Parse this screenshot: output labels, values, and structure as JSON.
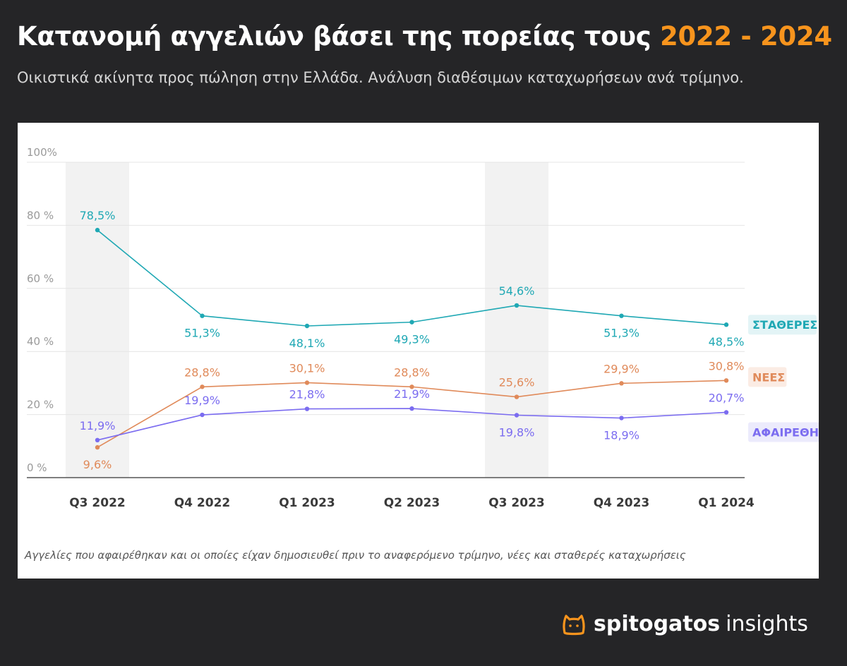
{
  "header": {
    "title_main": "Κατανομή αγγελιών βάσει της πορείας τους",
    "title_accent": "2022 - 2024",
    "subtitle": "Οικιστικά ακίνητα προς πώληση στην Ελλάδα. Ανάλυση διαθέσιμων καταχωρήσεων ανά τρίμηνο."
  },
  "footnote": "Αγγελίες που αφαιρέθηκαν και οι οποίες είχαν δημοσιευθεί πριν το αναφερόμενο τρίμηνο, νέες και σταθερές καταχωρήσεις",
  "brand": {
    "name": "spitogatos",
    "suffix": "insights",
    "logo_icon": "cat-outline-icon",
    "logo_color": "#f7941d"
  },
  "colors": {
    "background": "#252527",
    "accent": "#f7941d",
    "stable": "#1fa8b4",
    "new": "#e08a5a",
    "removed": "#7b6cf0",
    "highlight_band": "#f2f2f2"
  },
  "chart_data": {
    "type": "line",
    "categories": [
      "Q3 2022",
      "Q4 2022",
      "Q1 2023",
      "Q2 2023",
      "Q3 2023",
      "Q4 2023",
      "Q1 2024"
    ],
    "y_ticks": [
      "100%",
      "80 %",
      "60 %",
      "40 %",
      "20 %",
      "0 %"
    ],
    "y_tick_values": [
      100,
      80,
      60,
      40,
      20,
      0
    ],
    "ylim": [
      0,
      100
    ],
    "grid": true,
    "highlighted_categories": [
      "Q3 2022",
      "Q3 2023"
    ],
    "series": [
      {
        "key": "stable",
        "name": "ΣΤΑΘΕΡΕΣ",
        "values": [
          78.5,
          51.3,
          48.1,
          49.3,
          54.6,
          51.3,
          48.5
        ],
        "labels": [
          "78,5%",
          "51,3%",
          "48,1%",
          "49,3%",
          "54,6%",
          "51,3%",
          "48,5%"
        ]
      },
      {
        "key": "new",
        "name": "ΝΕΕΣ",
        "values": [
          9.6,
          28.8,
          30.1,
          28.8,
          25.6,
          29.9,
          30.8
        ],
        "labels": [
          "9,6%",
          "28,8%",
          "30,1%",
          "28,8%",
          "25,6%",
          "29,9%",
          "30,8%"
        ]
      },
      {
        "key": "removed",
        "name": "ΑΦΑΙΡΕΘΗΚΑΝ",
        "values": [
          11.9,
          19.9,
          21.8,
          21.9,
          19.8,
          18.9,
          20.7
        ],
        "labels": [
          "11,9%",
          "19,9%",
          "21,8%",
          "21,9%",
          "19,8%",
          "18,9%",
          "20,7%"
        ]
      }
    ]
  }
}
